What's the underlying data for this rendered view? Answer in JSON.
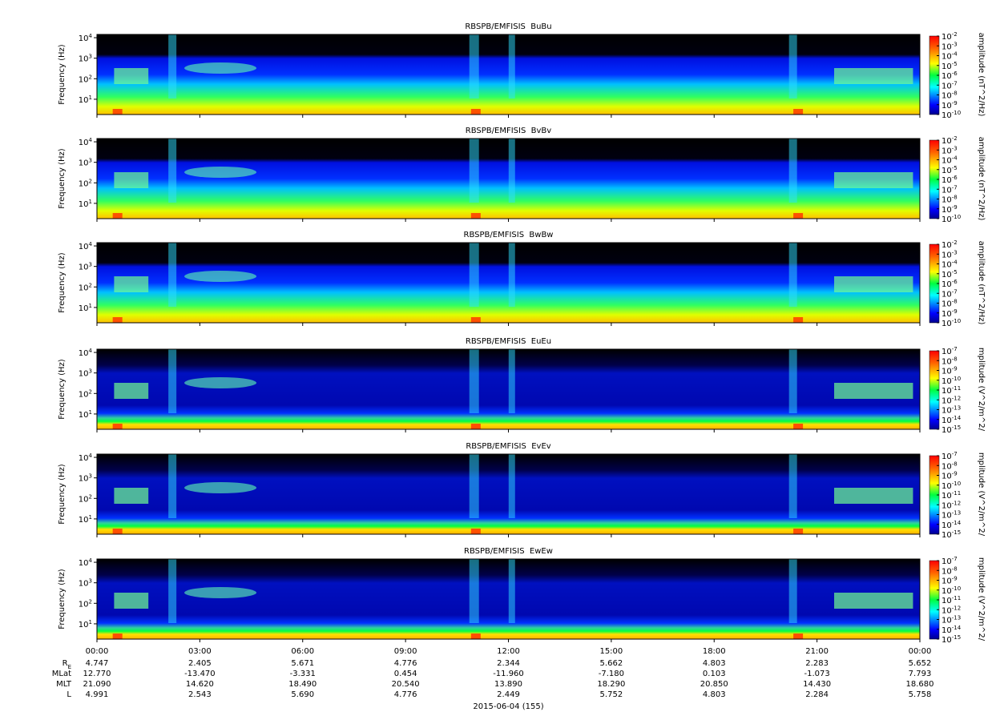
{
  "chart_data": [
    {
      "type": "spectrogram",
      "title": "RBSPB/EMFISIS  BuBu",
      "ylabel": "Frequency (Hz)",
      "yscale": "log",
      "ylim": [
        1.8,
        14400
      ],
      "yticks": [
        {
          "value": 10,
          "label": "10^1"
        },
        {
          "value": 100,
          "label": "10^2"
        },
        {
          "value": 1000,
          "label": "10^3"
        },
        {
          "value": 10000,
          "label": "10^4"
        }
      ],
      "zlabel": "amplitude (nT^2/Hz)",
      "zscale": "log",
      "zlim": [
        1e-10,
        0.01
      ],
      "zticks": [
        {
          "value": 0.01,
          "label": "10^-2"
        },
        {
          "value": 0.001,
          "label": "10^-3"
        },
        {
          "value": 0.0001,
          "label": "10^-4"
        },
        {
          "value": 1e-05,
          "label": "10^-5"
        },
        {
          "value": 1e-06,
          "label": "10^-6"
        },
        {
          "value": 1e-07,
          "label": "10^-7"
        },
        {
          "value": 1e-08,
          "label": "10^-8"
        },
        {
          "value": 1e-09,
          "label": "10^-9"
        },
        {
          "value": 1e-10,
          "label": "10^-10"
        }
      ]
    },
    {
      "type": "spectrogram",
      "title": "RBSPB/EMFISIS  BvBv",
      "ylabel": "Frequency (Hz)",
      "yscale": "log",
      "ylim": [
        1.8,
        14400
      ],
      "yticks": [
        {
          "value": 10,
          "label": "10^1"
        },
        {
          "value": 100,
          "label": "10^2"
        },
        {
          "value": 1000,
          "label": "10^3"
        },
        {
          "value": 10000,
          "label": "10^4"
        }
      ],
      "zlabel": "amplitude (nT^2/Hz)",
      "zscale": "log",
      "zlim": [
        1e-10,
        0.01
      ],
      "zticks": [
        {
          "value": 0.01,
          "label": "10^-2"
        },
        {
          "value": 0.001,
          "label": "10^-3"
        },
        {
          "value": 0.0001,
          "label": "10^-4"
        },
        {
          "value": 1e-05,
          "label": "10^-5"
        },
        {
          "value": 1e-06,
          "label": "10^-6"
        },
        {
          "value": 1e-07,
          "label": "10^-7"
        },
        {
          "value": 1e-08,
          "label": "10^-8"
        },
        {
          "value": 1e-09,
          "label": "10^-9"
        },
        {
          "value": 1e-10,
          "label": "10^-10"
        }
      ]
    },
    {
      "type": "spectrogram",
      "title": "RBSPB/EMFISIS  BwBw",
      "ylabel": "Frequency (Hz)",
      "yscale": "log",
      "ylim": [
        1.8,
        14400
      ],
      "yticks": [
        {
          "value": 10,
          "label": "10^1"
        },
        {
          "value": 100,
          "label": "10^2"
        },
        {
          "value": 1000,
          "label": "10^3"
        },
        {
          "value": 10000,
          "label": "10^4"
        }
      ],
      "zlabel": "amplitude (nT^2/Hz)",
      "zscale": "log",
      "zlim": [
        1e-10,
        0.01
      ],
      "zticks": [
        {
          "value": 0.01,
          "label": "10^-2"
        },
        {
          "value": 0.001,
          "label": "10^-3"
        },
        {
          "value": 0.0001,
          "label": "10^-4"
        },
        {
          "value": 1e-05,
          "label": "10^-5"
        },
        {
          "value": 1e-06,
          "label": "10^-6"
        },
        {
          "value": 1e-07,
          "label": "10^-7"
        },
        {
          "value": 1e-08,
          "label": "10^-8"
        },
        {
          "value": 1e-09,
          "label": "10^-9"
        },
        {
          "value": 1e-10,
          "label": "10^-10"
        }
      ]
    },
    {
      "type": "spectrogram",
      "title": "RBSPB/EMFISIS  EuEu",
      "ylabel": "Frequency (Hz)",
      "yscale": "log",
      "ylim": [
        1.8,
        14400
      ],
      "yticks": [
        {
          "value": 10,
          "label": "10^1"
        },
        {
          "value": 100,
          "label": "10^2"
        },
        {
          "value": 1000,
          "label": "10^3"
        },
        {
          "value": 10000,
          "label": "10^4"
        }
      ],
      "zlabel": "mplitude (V^2/m^2/",
      "zscale": "log",
      "zlim": [
        1e-15,
        1e-07
      ],
      "zticks": [
        {
          "value": 1e-07,
          "label": "10^-7"
        },
        {
          "value": 1e-08,
          "label": "10^-8"
        },
        {
          "value": 1e-09,
          "label": "10^-9"
        },
        {
          "value": 1e-10,
          "label": "10^-10"
        },
        {
          "value": 1e-11,
          "label": "10^-11"
        },
        {
          "value": 1e-12,
          "label": "10^-12"
        },
        {
          "value": 1e-13,
          "label": "10^-13"
        },
        {
          "value": 1e-14,
          "label": "10^-14"
        },
        {
          "value": 1e-15,
          "label": "10^-15"
        }
      ]
    },
    {
      "type": "spectrogram",
      "title": "RBSPB/EMFISIS  EvEv",
      "ylabel": "Frequency (Hz)",
      "yscale": "log",
      "ylim": [
        1.8,
        14400
      ],
      "yticks": [
        {
          "value": 10,
          "label": "10^1"
        },
        {
          "value": 100,
          "label": "10^2"
        },
        {
          "value": 1000,
          "label": "10^3"
        },
        {
          "value": 10000,
          "label": "10^4"
        }
      ],
      "zlabel": "mplitude (V^2/m^2/",
      "zscale": "log",
      "zlim": [
        1e-15,
        1e-07
      ],
      "zticks": [
        {
          "value": 1e-07,
          "label": "10^-7"
        },
        {
          "value": 1e-08,
          "label": "10^-8"
        },
        {
          "value": 1e-09,
          "label": "10^-9"
        },
        {
          "value": 1e-10,
          "label": "10^-10"
        },
        {
          "value": 1e-11,
          "label": "10^-11"
        },
        {
          "value": 1e-12,
          "label": "10^-12"
        },
        {
          "value": 1e-13,
          "label": "10^-13"
        },
        {
          "value": 1e-14,
          "label": "10^-14"
        },
        {
          "value": 1e-15,
          "label": "10^-15"
        }
      ]
    },
    {
      "type": "spectrogram",
      "title": "RBSPB/EMFISIS  EwEw",
      "ylabel": "Frequency (Hz)",
      "yscale": "log",
      "ylim": [
        1.8,
        14400
      ],
      "yticks": [
        {
          "value": 10,
          "label": "10^1"
        },
        {
          "value": 100,
          "label": "10^2"
        },
        {
          "value": 1000,
          "label": "10^3"
        },
        {
          "value": 10000,
          "label": "10^4"
        }
      ],
      "zlabel": "mplitude (V^2/m^2/",
      "zscale": "log",
      "zlim": [
        1e-15,
        1e-07
      ],
      "zticks": [
        {
          "value": 1e-07,
          "label": "10^-7"
        },
        {
          "value": 1e-08,
          "label": "10^-8"
        },
        {
          "value": 1e-09,
          "label": "10^-9"
        },
        {
          "value": 1e-10,
          "label": "10^-10"
        },
        {
          "value": 1e-11,
          "label": "10^-11"
        },
        {
          "value": 1e-12,
          "label": "10^-12"
        },
        {
          "value": 1e-13,
          "label": "10^-13"
        },
        {
          "value": 1e-14,
          "label": "10^-14"
        },
        {
          "value": 1e-15,
          "label": "10^-15"
        }
      ]
    }
  ],
  "x_axis": {
    "xlim": [
      0,
      24
    ],
    "xticks": [
      {
        "value": 0,
        "label": "00:00"
      },
      {
        "value": 3,
        "label": "03:00"
      },
      {
        "value": 6,
        "label": "06:00"
      },
      {
        "value": 9,
        "label": "09:00"
      },
      {
        "value": 12,
        "label": "12:00"
      },
      {
        "value": 15,
        "label": "15:00"
      },
      {
        "value": 18,
        "label": "18:00"
      },
      {
        "value": 21,
        "label": "21:00"
      },
      {
        "value": 24,
        "label": "00:00"
      }
    ]
  },
  "ephemeris": [
    {
      "label": "R_E",
      "values": [
        "4.747",
        "2.405",
        "5.671",
        "4.776",
        "2.344",
        "5.662",
        "4.803",
        "2.283",
        "5.652"
      ]
    },
    {
      "label": "MLat",
      "values": [
        "12.770",
        "-13.470",
        "-3.331",
        "0.454",
        "-11.960",
        "-7.180",
        "0.103",
        "-1.073",
        "7.793"
      ]
    },
    {
      "label": "MLT",
      "values": [
        "21.090",
        "14.620",
        "18.490",
        "20.540",
        "13.890",
        "18.290",
        "20.850",
        "14.430",
        "18.680"
      ]
    },
    {
      "label": "L",
      "values": [
        "4.991",
        "2.543",
        "5.690",
        "4.776",
        "2.449",
        "5.752",
        "4.803",
        "2.284",
        "5.758"
      ]
    }
  ],
  "date_label": "2015-06-04 (155)"
}
